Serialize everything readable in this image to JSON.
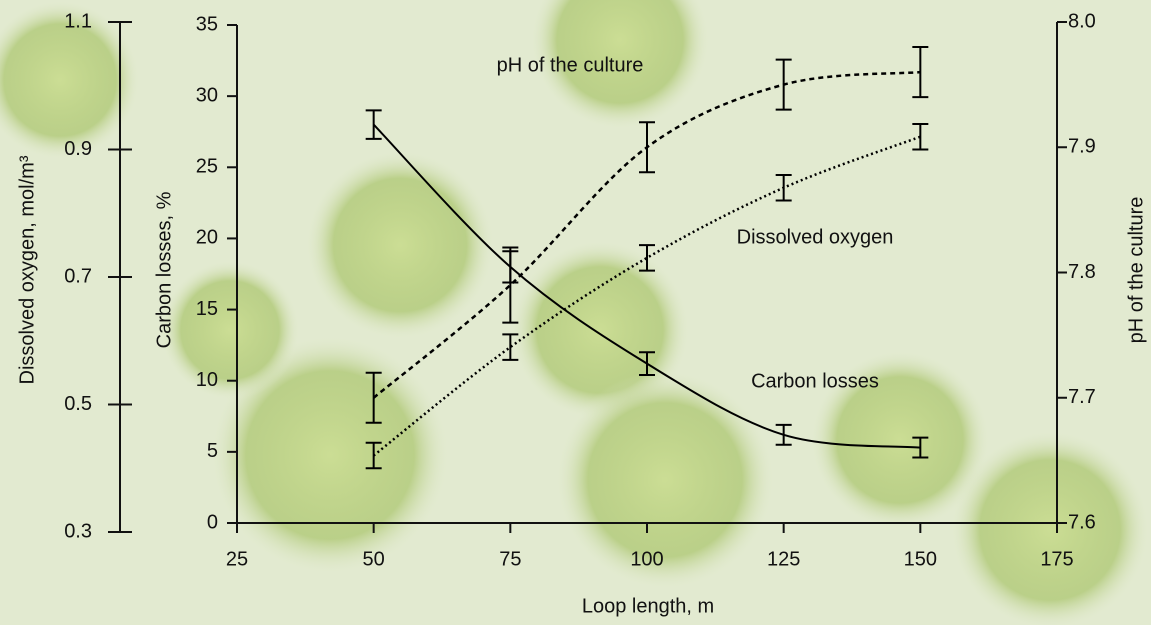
{
  "chart_data": {
    "type": "line",
    "x_label": "Loop length, m",
    "y_label": "Carbon losses, %",
    "y2_label": "pH of the culture",
    "y3_label": "Dissolved oxygen, mol/m³",
    "x": [
      50,
      75,
      100,
      125,
      150
    ],
    "xlim": [
      25,
      175
    ],
    "xticks": [
      25,
      50,
      75,
      100,
      125,
      150,
      175
    ],
    "ylim": [
      0,
      35
    ],
    "yticks": [
      0,
      5,
      10,
      15,
      20,
      25,
      30,
      35
    ],
    "y2lim": [
      7.6,
      8.0
    ],
    "y2ticks": [
      7.6,
      7.7,
      7.8,
      7.9,
      {
        "value": 8.0,
        "label": "8.0"
      }
    ],
    "y3lim": [
      0.3,
      1.1
    ],
    "y3ticks": [
      0.3,
      0.5,
      0.7,
      0.9,
      1.1
    ],
    "series": [
      {
        "name": "Carbon losses",
        "color": "#000000",
        "style": "solid",
        "axis": "y",
        "values": [
          28,
          18,
          11.2,
          6.2,
          5.3
        ],
        "errors": [
          1,
          1.1,
          0.8,
          0.7,
          0.7
        ]
      },
      {
        "name": "pH of the culture",
        "color": "#000000",
        "style": "dashed",
        "axis": "y2",
        "values": [
          7.7,
          7.79,
          7.9,
          7.95,
          7.96
        ],
        "errors": [
          0.02,
          0.03,
          0.02,
          0.02,
          0.02
        ]
      },
      {
        "name": "Dissolved oxygen",
        "color": "#000000",
        "style": "dotted",
        "axis": "y3",
        "values": [
          0.42,
          0.59,
          0.73,
          0.84,
          0.92
        ],
        "errors": [
          0.02,
          0.02,
          0.02,
          0.02,
          0.02
        ]
      }
    ]
  }
}
